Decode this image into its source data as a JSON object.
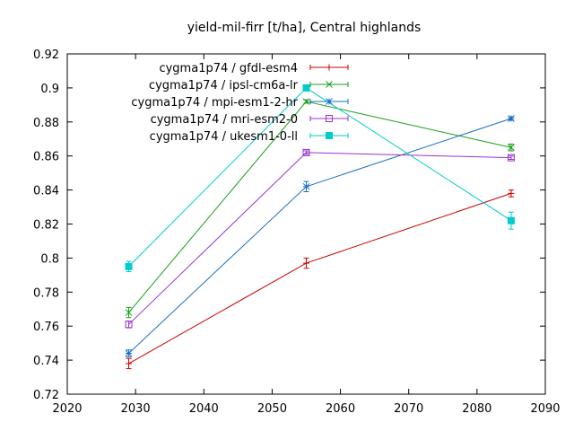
{
  "chart_data": {
    "type": "line",
    "title": "yield-mil-firr [t/ha], Central highlands",
    "xlabel": "",
    "ylabel": "",
    "xlim": [
      2020,
      2090
    ],
    "ylim": [
      0.72,
      0.92
    ],
    "xticks": [
      2020,
      2030,
      2040,
      2050,
      2060,
      2070,
      2080,
      2090
    ],
    "yticks": [
      0.72,
      0.74,
      0.76,
      0.78,
      0.8,
      0.82,
      0.84,
      0.86,
      0.88,
      0.9,
      0.92
    ],
    "ytick_labels": [
      "0.72",
      "0.74",
      "0.76",
      "0.78",
      "0.8",
      "0.82",
      "0.84",
      "0.86",
      "0.88",
      "0.9",
      "0.92"
    ],
    "grid": false,
    "legend_position": "top-right",
    "x": [
      2029,
      2055,
      2085
    ],
    "series": [
      {
        "name": "cygma1p74 / gfdl-esm4",
        "color": "#cc0000",
        "marker": "plus",
        "values": [
          0.738,
          0.797,
          0.838
        ],
        "errors": [
          0.003,
          0.003,
          0.002
        ]
      },
      {
        "name": "cygma1p74 / ipsl-cm6a-lr",
        "color": "#1a9e1a",
        "marker": "x",
        "values": [
          0.768,
          0.892,
          0.865
        ],
        "errors": [
          0.003,
          0.001,
          0.002
        ]
      },
      {
        "name": "cygma1p74 / mpi-esm1-2-hr",
        "color": "#1a6fc4",
        "marker": "star",
        "values": [
          0.744,
          0.842,
          0.882
        ],
        "errors": [
          0.002,
          0.003,
          0.001
        ]
      },
      {
        "name": "cygma1p74 / mri-esm2-0",
        "color": "#9933cc",
        "marker": "square",
        "values": [
          0.761,
          0.862,
          0.859
        ],
        "errors": [
          0.002,
          0.001,
          0.001
        ]
      },
      {
        "name": "cygma1p74 / ukesm1-0-ll",
        "color": "#00cccc",
        "marker": "filled-square",
        "values": [
          0.795,
          0.9,
          0.822
        ],
        "errors": [
          0.003,
          0.001,
          0.005
        ]
      }
    ]
  }
}
